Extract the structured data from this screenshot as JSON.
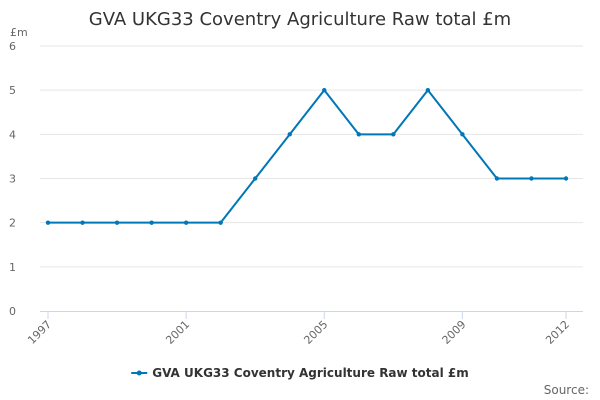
{
  "chart_data": {
    "type": "line",
    "title": "GVA UKG33 Coventry Agriculture Raw total £m",
    "ylabel": "£m",
    "xlabel": "",
    "x": [
      1997,
      1998,
      1999,
      2000,
      2001,
      2002,
      2003,
      2004,
      2005,
      2006,
      2007,
      2008,
      2009,
      2010,
      2011,
      2012
    ],
    "xticks": [
      "1997",
      "2001",
      "2005",
      "2009",
      "2012"
    ],
    "xtick_values": [
      1997,
      2001,
      2005,
      2009,
      2012
    ],
    "yticks": [
      "0",
      "1",
      "2",
      "3",
      "4",
      "5",
      "6"
    ],
    "xlim": [
      1997,
      2012
    ],
    "ylim": [
      0,
      6
    ],
    "grid": true,
    "legend_position": "bottom-center",
    "series": [
      {
        "name": "GVA UKG33 Coventry Agriculture Raw total £m",
        "color": "#0077b6",
        "values": [
          2,
          2,
          2,
          2,
          2,
          2,
          3,
          4,
          5,
          4,
          4,
          5,
          4,
          3,
          3,
          3
        ]
      }
    ],
    "credit": "Source:"
  }
}
